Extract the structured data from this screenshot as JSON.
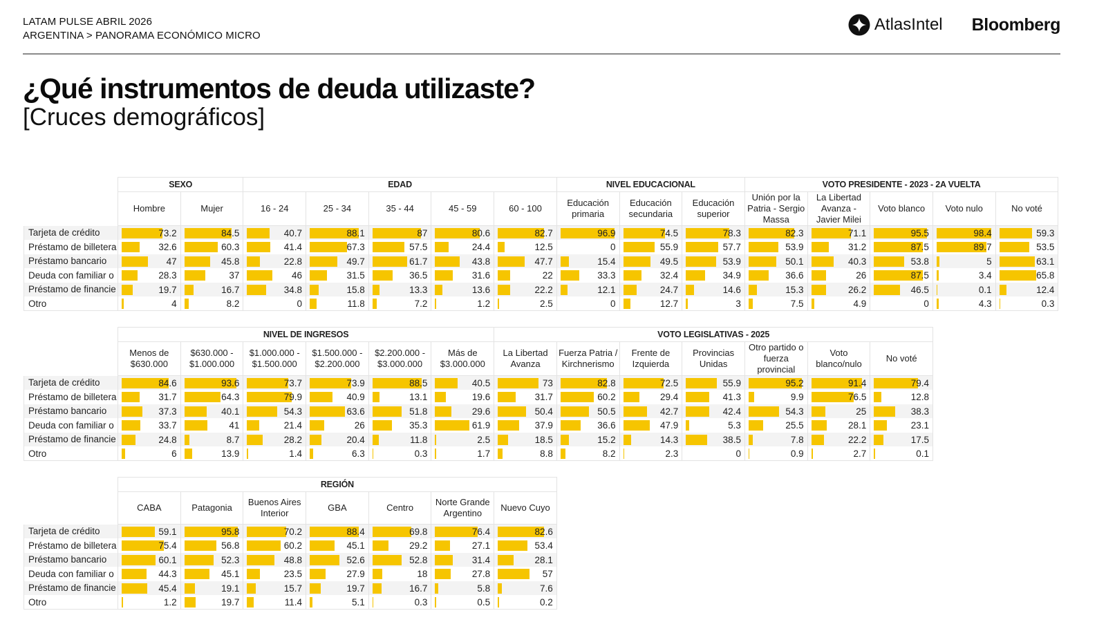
{
  "header": {
    "kicker_line1": "LATAM PULSE ABRIL 2026",
    "kicker_line2": "ARGENTINA > PANORAMA ECONÓMICO MICRO",
    "logo_atlas": "AtlasIntel",
    "logo_bloomberg": "Bloomberg"
  },
  "title": "¿Qué instrumentos de deuda utilizaste?",
  "subtitle": "[Cruces demográficos]",
  "colors": {
    "bar": "#f6c500",
    "alt_row": "#f3f3f3",
    "border": "#e3e3e3"
  },
  "chart_data": {
    "type": "table",
    "title": "¿Qué instrumentos de deuda utilizaste?",
    "value_unit": "%",
    "row_labels": [
      "Tarjeta de crédito",
      "Préstamo de billetera",
      "Préstamo bancario",
      "Deuda con familiar o",
      "Préstamo de financie",
      "Otro"
    ],
    "tables": [
      {
        "groups": [
          {
            "name": "SEXO",
            "columns": [
              {
                "label": "Hombre",
                "values": [
                  73.2,
                  32.6,
                  47,
                  28.3,
                  19.7,
                  4
                ]
              },
              {
                "label": "Mujer",
                "values": [
                  84.5,
                  60.3,
                  45.8,
                  37,
                  16.7,
                  8.2
                ]
              }
            ]
          },
          {
            "name": "EDAD",
            "columns": [
              {
                "label": "16 - 24",
                "values": [
                  40.7,
                  41.4,
                  22.8,
                  46,
                  34.8,
                  0
                ]
              },
              {
                "label": "25 - 34",
                "values": [
                  88.1,
                  67.3,
                  49.7,
                  31.5,
                  15.8,
                  11.8
                ]
              },
              {
                "label": "35 - 44",
                "values": [
                  87,
                  57.5,
                  61.7,
                  36.5,
                  13.3,
                  7.2
                ]
              },
              {
                "label": "45 - 59",
                "values": [
                  80.6,
                  24.4,
                  43.8,
                  31.6,
                  13.6,
                  1.2
                ]
              },
              {
                "label": "60 - 100",
                "values": [
                  82.7,
                  12.5,
                  47.7,
                  22,
                  22.2,
                  2.5
                ]
              }
            ]
          },
          {
            "name": "NIVEL EDUCACIONAL",
            "columns": [
              {
                "label": "Educación primaria",
                "values": [
                  96.9,
                  0,
                  15.4,
                  33.3,
                  12.1,
                  0
                ]
              },
              {
                "label": "Educación secundaria",
                "values": [
                  74.5,
                  55.9,
                  49.5,
                  32.4,
                  24.7,
                  12.7
                ]
              },
              {
                "label": "Educación superior",
                "values": [
                  78.3,
                  57.7,
                  53.9,
                  34.9,
                  14.6,
                  3
                ]
              }
            ]
          },
          {
            "name": "VOTO PRESIDENTE - 2023 - 2A VUELTA",
            "columns": [
              {
                "label": "Unión por la Patria - Sergio Massa",
                "values": [
                  82.3,
                  53.9,
                  50.1,
                  36.6,
                  15.3,
                  7.5
                ]
              },
              {
                "label": "La Libertad Avanza - Javier Milei",
                "values": [
                  71.1,
                  31.2,
                  40.3,
                  26,
                  26.2,
                  4.9
                ]
              },
              {
                "label": "Voto blanco",
                "values": [
                  95.5,
                  87.5,
                  53.8,
                  87.5,
                  46.5,
                  0
                ]
              },
              {
                "label": "Voto nulo",
                "values": [
                  98.4,
                  89.7,
                  5,
                  3.4,
                  0.1,
                  4.3
                ]
              },
              {
                "label": "No voté",
                "values": [
                  59.3,
                  53.5,
                  63.1,
                  65.8,
                  12.4,
                  0.3
                ]
              }
            ]
          }
        ]
      },
      {
        "groups": [
          {
            "name": "NIVEL DE INGRESOS",
            "columns": [
              {
                "label": "Menos de $630.000",
                "values": [
                  84.6,
                  31.7,
                  37.3,
                  33.7,
                  24.8,
                  6
                ]
              },
              {
                "label": "$630.000 - $1.000.000",
                "values": [
                  93.6,
                  64.3,
                  40.1,
                  41,
                  8.7,
                  13.9
                ]
              },
              {
                "label": "$1.000.000 - $1.500.000",
                "values": [
                  73.7,
                  79.9,
                  54.3,
                  21.4,
                  28.2,
                  1.4
                ]
              },
              {
                "label": "$1.500.000 - $2.200.000",
                "values": [
                  73.9,
                  40.9,
                  63.6,
                  26,
                  20.4,
                  6.3
                ]
              },
              {
                "label": "$2.200.000 - $3.000.000",
                "values": [
                  88.5,
                  13.1,
                  51.8,
                  35.3,
                  11.8,
                  0.3
                ]
              },
              {
                "label": "Más de $3.000.000",
                "values": [
                  40.5,
                  19.6,
                  29.6,
                  61.9,
                  2.5,
                  1.7
                ]
              }
            ]
          },
          {
            "name": "VOTO LEGISLATIVAS - 2025",
            "columns": [
              {
                "label": "La Libertad Avanza",
                "values": [
                  73,
                  31.7,
                  50.4,
                  37.9,
                  18.5,
                  8.8
                ]
              },
              {
                "label": "Fuerza Patria / Kirchnerismo",
                "values": [
                  82.8,
                  60.2,
                  50.5,
                  36.6,
                  15.2,
                  8.2
                ]
              },
              {
                "label": "Frente de Izquierda",
                "values": [
                  72.5,
                  29.4,
                  42.7,
                  47.9,
                  14.3,
                  2.3
                ]
              },
              {
                "label": "Provincias Unidas",
                "values": [
                  55.9,
                  41.3,
                  42.4,
                  5.3,
                  38.5,
                  0
                ]
              },
              {
                "label": "Otro partido o fuerza provincial",
                "values": [
                  95.2,
                  9.9,
                  54.3,
                  25.5,
                  7.8,
                  0.9
                ]
              },
              {
                "label": "Voto blanco/nulo",
                "values": [
                  91.4,
                  76.5,
                  25,
                  28.1,
                  22.2,
                  2.7
                ]
              },
              {
                "label": "No voté",
                "values": [
                  79.4,
                  12.8,
                  38.3,
                  23.1,
                  17.5,
                  0.1
                ]
              }
            ]
          }
        ]
      },
      {
        "groups": [
          {
            "name": "REGIÓN",
            "columns": [
              {
                "label": "CABA",
                "values": [
                  59.1,
                  75.4,
                  60.1,
                  44.3,
                  45.4,
                  1.2
                ]
              },
              {
                "label": "Patagonia",
                "values": [
                  95.8,
                  56.8,
                  52.3,
                  45.1,
                  19.1,
                  19.7
                ]
              },
              {
                "label": "Buenos Aires Interior",
                "values": [
                  70.2,
                  60.2,
                  48.8,
                  23.5,
                  15.7,
                  11.4
                ]
              },
              {
                "label": "GBA",
                "values": [
                  88.4,
                  45.1,
                  52.6,
                  27.9,
                  19.7,
                  5.1
                ]
              },
              {
                "label": "Centro",
                "values": [
                  69.8,
                  29.2,
                  52.8,
                  18,
                  16.7,
                  0.3
                ]
              },
              {
                "label": "Norte Grande Argentino",
                "values": [
                  76.4,
                  27.1,
                  31.4,
                  27.8,
                  5.8,
                  0.5
                ]
              },
              {
                "label": "Nuevo Cuyo",
                "values": [
                  82.6,
                  53.4,
                  28.1,
                  57,
                  7.6,
                  0.2
                ]
              }
            ]
          }
        ]
      }
    ]
  }
}
